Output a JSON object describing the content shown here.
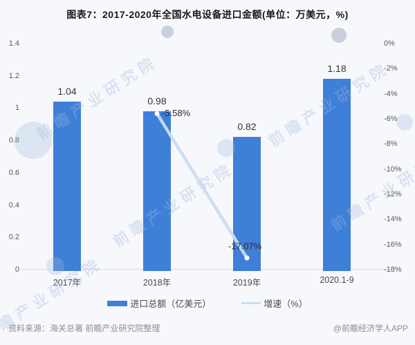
{
  "title": "图表7：2017-2020年全国水电设备进口金额(单位：万美元，%)",
  "chart_data": {
    "type": "bar",
    "title": "图表7：2017-2020年全国水电设备进口金额(单位：万美元，%)",
    "categories": [
      "2017年",
      "2018年",
      "2019年",
      "2020.1-9"
    ],
    "series": [
      {
        "name": "进口总额（亿美元）",
        "type": "bar",
        "axis": "left",
        "values": [
          1.04,
          0.98,
          0.82,
          1.18
        ]
      },
      {
        "name": "增速（%）",
        "type": "line",
        "axis": "right",
        "values": [
          null,
          -5.58,
          -17.07,
          null
        ]
      }
    ],
    "bar_labels": [
      "1.04",
      "0.98",
      "0.82",
      "1.18"
    ],
    "line_labels": [
      null,
      "-5.58%",
      "-17.07%",
      null
    ],
    "left_axis": {
      "min": 0,
      "max": 1.4,
      "ticks": [
        "0",
        "0.2",
        "0.4",
        "0.6",
        "0.8",
        "1",
        "1.2",
        "1.4"
      ]
    },
    "right_axis": {
      "min": -18,
      "max": 0,
      "ticks": [
        "0%",
        "-2%",
        "-4%",
        "-6%",
        "-8%",
        "-10%",
        "-12%",
        "-14%",
        "-16%",
        "-18%"
      ]
    },
    "grid": false,
    "legend_position": "bottom"
  },
  "legend": {
    "items": [
      {
        "label": "进口总额（亿美元）",
        "type": "bar",
        "color": "#3E7FD8"
      },
      {
        "label": "增速（%）",
        "type": "line",
        "color": "#C9DCF2"
      }
    ]
  },
  "footer": {
    "source": "资料来源：海关总署 前瞻产业研究院整理",
    "credit": "@前瞻经济学人APP"
  },
  "watermark": {
    "text": "前瞻产业研究院"
  },
  "colors": {
    "bar": "#3E7FD8",
    "line": "#C9DCF2",
    "axis": "#D9D9D9",
    "background": "#F7F8FB"
  }
}
